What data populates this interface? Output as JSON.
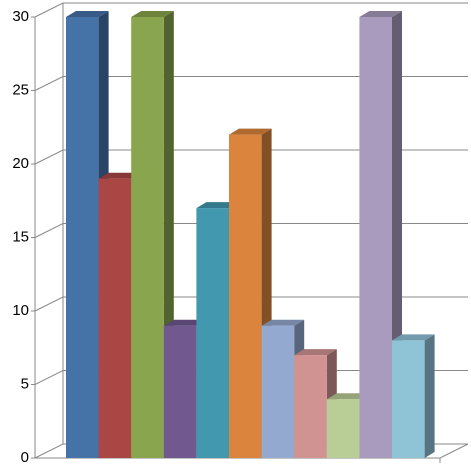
{
  "chart_data": {
    "type": "bar3d",
    "categories": [
      null,
      null,
      null,
      null,
      null,
      null,
      null,
      null,
      null,
      null,
      null
    ],
    "values": [
      30,
      19,
      30,
      9,
      17,
      22,
      9,
      7,
      4,
      30,
      8
    ],
    "colors": [
      "#4572a7",
      "#aa4643",
      "#89a54e",
      "#71588f",
      "#4198af",
      "#db843d",
      "#93a9cf",
      "#d19392",
      "#b9cd96",
      "#a99bbd",
      "#8fc3d6"
    ],
    "ylim": [
      0,
      30
    ],
    "yticks": [
      0,
      5,
      10,
      15,
      20,
      25,
      30
    ],
    "grid": true
  }
}
